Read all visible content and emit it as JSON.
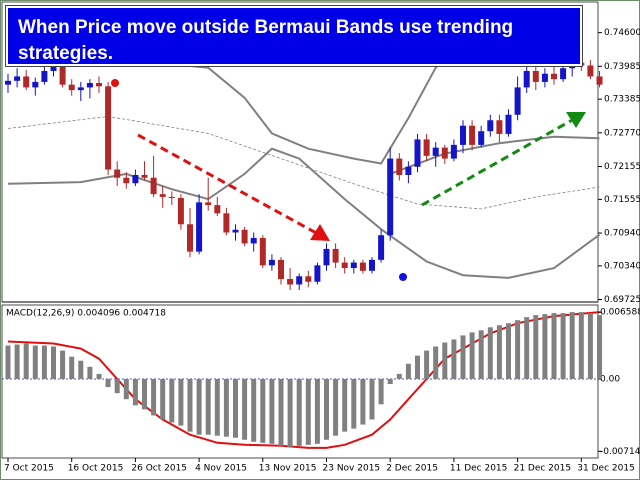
{
  "chart_data": [
    {
      "type": "candlestick",
      "title": "When Price move outside Bermaui Bands use trending strategies.",
      "up_color": "#1414c8",
      "down_color": "#b02828",
      "band_color": "#808080",
      "candles": [
        [
          0.7365,
          0.7385,
          0.735,
          0.7372
        ],
        [
          0.7372,
          0.7395,
          0.736,
          0.738
        ],
        [
          0.738,
          0.7392,
          0.7355,
          0.736
        ],
        [
          0.736,
          0.7378,
          0.7345,
          0.737
        ],
        [
          0.737,
          0.74,
          0.7365,
          0.739
        ],
        [
          0.739,
          0.742,
          0.738,
          0.741
        ],
        [
          0.741,
          0.7415,
          0.736,
          0.7365
        ],
        [
          0.7365,
          0.7375,
          0.7345,
          0.7355
        ],
        [
          0.7355,
          0.737,
          0.7335,
          0.736
        ],
        [
          0.736,
          0.7375,
          0.734,
          0.7368
        ],
        [
          0.7368,
          0.738,
          0.735,
          0.7362
        ],
        [
          0.7362,
          0.737,
          0.72,
          0.721
        ],
        [
          0.721,
          0.7225,
          0.718,
          0.7195
        ],
        [
          0.7195,
          0.7205,
          0.7175,
          0.7185
        ],
        [
          0.7185,
          0.721,
          0.718,
          0.72
        ],
        [
          0.72,
          0.7225,
          0.719,
          0.7195
        ],
        [
          0.7195,
          0.7235,
          0.716,
          0.7165
        ],
        [
          0.7165,
          0.718,
          0.714,
          0.716
        ],
        [
          0.716,
          0.717,
          0.7145,
          0.7158
        ],
        [
          0.7158,
          0.7165,
          0.71,
          0.711
        ],
        [
          0.711,
          0.714,
          0.705,
          0.706
        ],
        [
          0.706,
          0.7165,
          0.7055,
          0.715
        ],
        [
          0.715,
          0.7195,
          0.7135,
          0.7145
        ],
        [
          0.7145,
          0.716,
          0.7125,
          0.713
        ],
        [
          0.713,
          0.714,
          0.709,
          0.7095
        ],
        [
          0.7095,
          0.711,
          0.708,
          0.71
        ],
        [
          0.71,
          0.7105,
          0.707,
          0.7075
        ],
        [
          0.7075,
          0.7095,
          0.706,
          0.7085
        ],
        [
          0.7085,
          0.709,
          0.703,
          0.7035
        ],
        [
          0.7035,
          0.7055,
          0.7025,
          0.7045
        ],
        [
          0.7045,
          0.705,
          0.7,
          0.701
        ],
        [
          0.701,
          0.703,
          0.699,
          0.7
        ],
        [
          0.7,
          0.702,
          0.699,
          0.7015
        ],
        [
          0.7015,
          0.7025,
          0.6995,
          0.7005
        ],
        [
          0.7005,
          0.704,
          0.7,
          0.7035
        ],
        [
          0.7035,
          0.7075,
          0.7025,
          0.7065
        ],
        [
          0.7065,
          0.7075,
          0.703,
          0.704
        ],
        [
          0.704,
          0.705,
          0.702,
          0.703
        ],
        [
          0.703,
          0.7045,
          0.702,
          0.704
        ],
        [
          0.704,
          0.7045,
          0.702,
          0.7025
        ],
        [
          0.7025,
          0.705,
          0.702,
          0.7045
        ],
        [
          0.7045,
          0.71,
          0.704,
          0.709
        ],
        [
          0.709,
          0.725,
          0.708,
          0.723
        ],
        [
          0.723,
          0.724,
          0.719,
          0.72
        ],
        [
          0.72,
          0.7225,
          0.7185,
          0.7215
        ],
        [
          0.7215,
          0.7275,
          0.7205,
          0.7265
        ],
        [
          0.7265,
          0.7275,
          0.7225,
          0.7235
        ],
        [
          0.7235,
          0.726,
          0.7215,
          0.725
        ],
        [
          0.725,
          0.7255,
          0.722,
          0.723
        ],
        [
          0.723,
          0.7265,
          0.7225,
          0.7255
        ],
        [
          0.7255,
          0.73,
          0.724,
          0.729
        ],
        [
          0.729,
          0.73,
          0.7245,
          0.7255
        ],
        [
          0.7255,
          0.729,
          0.725,
          0.728
        ],
        [
          0.728,
          0.731,
          0.727,
          0.73
        ],
        [
          0.73,
          0.731,
          0.726,
          0.7275
        ],
        [
          0.7275,
          0.732,
          0.727,
          0.731
        ],
        [
          0.731,
          0.738,
          0.73,
          0.736
        ],
        [
          0.736,
          0.742,
          0.735,
          0.739
        ],
        [
          0.739,
          0.74,
          0.7355,
          0.737
        ],
        [
          0.737,
          0.7395,
          0.736,
          0.7385
        ],
        [
          0.7385,
          0.74,
          0.7365,
          0.7375
        ],
        [
          0.7375,
          0.7405,
          0.737,
          0.7395
        ],
        [
          0.7395,
          0.742,
          0.738,
          0.7405
        ],
        [
          0.7405,
          0.7425,
          0.739,
          0.74
        ],
        [
          0.74,
          0.741,
          0.7375,
          0.738
        ],
        [
          0.738,
          0.739,
          0.736,
          0.7365
        ]
      ],
      "bands": [
        {
          "style": "solid",
          "x": [
            0,
            11,
            22,
            26,
            29,
            33,
            38,
            41,
            44,
            47,
            50
          ],
          "values": [
            0.7414,
            0.7414,
            0.7396,
            0.7341,
            0.7276,
            0.7248,
            0.723,
            0.7221,
            0.7304,
            0.7396,
            0.7451
          ]
        },
        {
          "style": "solid",
          "x": [
            42,
            48,
            54,
            60,
            65
          ],
          "values": [
            0.7202,
            0.7239,
            0.7258,
            0.727,
            0.7267
          ]
        },
        {
          "style": "dashed",
          "x": [
            0,
            11,
            22,
            30,
            38,
            45,
            52,
            58,
            65
          ],
          "values": [
            0.7285,
            0.7307,
            0.7276,
            0.723,
            0.7184,
            0.7147,
            0.7138,
            0.716,
            0.7178
          ]
        },
        {
          "style": "solid",
          "x": [
            0,
            8,
            13,
            18,
            22,
            26,
            29,
            32,
            37,
            41,
            46,
            50,
            55,
            60,
            65
          ],
          "values": [
            0.7184,
            0.7187,
            0.7202,
            0.7174,
            0.7156,
            0.7202,
            0.7248,
            0.723,
            0.7156,
            0.7101,
            0.7042,
            0.7017,
            0.7012,
            0.703,
            0.7091
          ]
        }
      ],
      "xlim": [
        0,
        65.5
      ],
      "ylim": [
        0.6968,
        0.7516
      ],
      "yticks": [
        {
          "value": 0.746,
          "label": "0.74600"
        },
        {
          "value": 0.73985,
          "label": "0.73985"
        },
        {
          "value": 0.73385,
          "label": "0.73385"
        },
        {
          "value": 0.7277,
          "label": "0.72770"
        },
        {
          "value": 0.72155,
          "label": "0.72155"
        },
        {
          "value": 0.71555,
          "label": "0.71555"
        },
        {
          "value": 0.7094,
          "label": "0.70940"
        },
        {
          "value": 0.7034,
          "label": "0.70340"
        },
        {
          "value": 0.69725,
          "label": "0.69725"
        }
      ]
    },
    {
      "type": "bar",
      "title": "MACD(12,26,9) 0.004096 0.004718",
      "series": [
        {
          "color": "#808080",
          "values": [
            0.0033,
            0.0034,
            0.0035,
            0.0033,
            0.0033,
            0.0032,
            0.0028,
            0.0022,
            0.0018,
            0.0012,
            0.0005,
            -0.0008,
            -0.0014,
            -0.002,
            -0.0026,
            -0.003,
            -0.0036,
            -0.004,
            -0.0043,
            -0.0046,
            -0.0052,
            -0.0055,
            -0.0055,
            -0.0056,
            -0.0057,
            -0.0058,
            -0.006,
            -0.0062,
            -0.0063,
            -0.0064,
            -0.0066,
            -0.0067,
            -0.0066,
            -0.0065,
            -0.0064,
            -0.006,
            -0.0056,
            -0.0052,
            -0.0049,
            -0.0045,
            -0.004,
            -0.0025,
            -0.0005,
            0.0005,
            0.0015,
            0.0023,
            0.0028,
            0.0032,
            0.0036,
            0.0039,
            0.0043,
            0.0046,
            0.0048,
            0.0051,
            0.0053,
            0.0055,
            0.0058,
            0.0061,
            0.0063,
            0.0064,
            0.0065,
            0.0065,
            0.0066,
            0.0066,
            0.0065,
            0.0063
          ]
        },
        {
          "type": "line",
          "color": "#e01010",
          "x": [
            0,
            5,
            8,
            10,
            12,
            14,
            17,
            20,
            23,
            26,
            30,
            33,
            35,
            37,
            40,
            42,
            44,
            46,
            48,
            50,
            53,
            56,
            60,
            65
          ],
          "values": [
            0.0037,
            0.0035,
            0.003,
            0.002,
            0,
            -0.002,
            -0.004,
            -0.0055,
            -0.0063,
            -0.0065,
            -0.0066,
            -0.0068,
            -0.0068,
            -0.0065,
            -0.0055,
            -0.004,
            -0.002,
            0,
            0.002,
            0.003,
            0.0045,
            0.0055,
            0.0062,
            0.0066
          ]
        }
      ],
      "xlim": [
        0,
        65.5
      ],
      "ylim": [
        -0.0078,
        0.0073
      ],
      "yticks": [
        0.006588,
        {
          "value": 0,
          "label": "0.00"
        },
        -0.00714
      ],
      "xticks": [
        {
          "value": 0,
          "label": "7 Oct 2015"
        },
        {
          "value": 7,
          "label": "16 Oct 2015"
        },
        {
          "value": 14,
          "label": "26 Oct 2015"
        },
        {
          "value": 21,
          "label": "4 Nov 2015"
        },
        {
          "value": 28,
          "label": "13 Nov 2015"
        },
        {
          "value": 35,
          "label": "23 Nov 2015"
        },
        {
          "value": 42,
          "label": "2 Dec 2015"
        },
        {
          "value": 49,
          "label": "11 Dec 2015"
        },
        {
          "value": 56,
          "label": "21 Dec 2015"
        },
        {
          "value": 63,
          "label": "31 Dec 2015"
        }
      ]
    }
  ]
}
